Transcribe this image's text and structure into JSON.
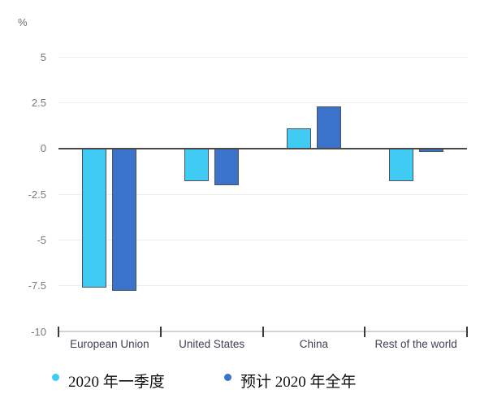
{
  "chart_data": {
    "type": "bar",
    "title": "",
    "ylabel": "%",
    "xlabel": "",
    "categories": [
      "European Union",
      "United States",
      "China",
      "Rest of the world"
    ],
    "series": [
      {
        "name": "2020 年一季度",
        "color": "#3fcbf4",
        "values": [
          -7.6,
          -1.8,
          1.1,
          -1.8
        ]
      },
      {
        "name": "预计 2020 年全年",
        "color": "#3a73c9",
        "values": [
          -7.8,
          -2.0,
          2.3,
          -0.2
        ]
      }
    ],
    "ylim": [
      -10,
      5
    ],
    "yticks": [
      5,
      2.5,
      0,
      -2.5,
      -5,
      -7.5,
      -10
    ],
    "grid": true,
    "legend_position": "bottom",
    "colors": {
      "bar_border": "#4d525c",
      "zero_line": "#4a4a4a",
      "gridline": "#ededed",
      "axis_baseline": "#cfd4dc",
      "axis_tick": "#3b3b3b",
      "ytick_text": "#77787c",
      "category_text": "#3e4152"
    }
  }
}
